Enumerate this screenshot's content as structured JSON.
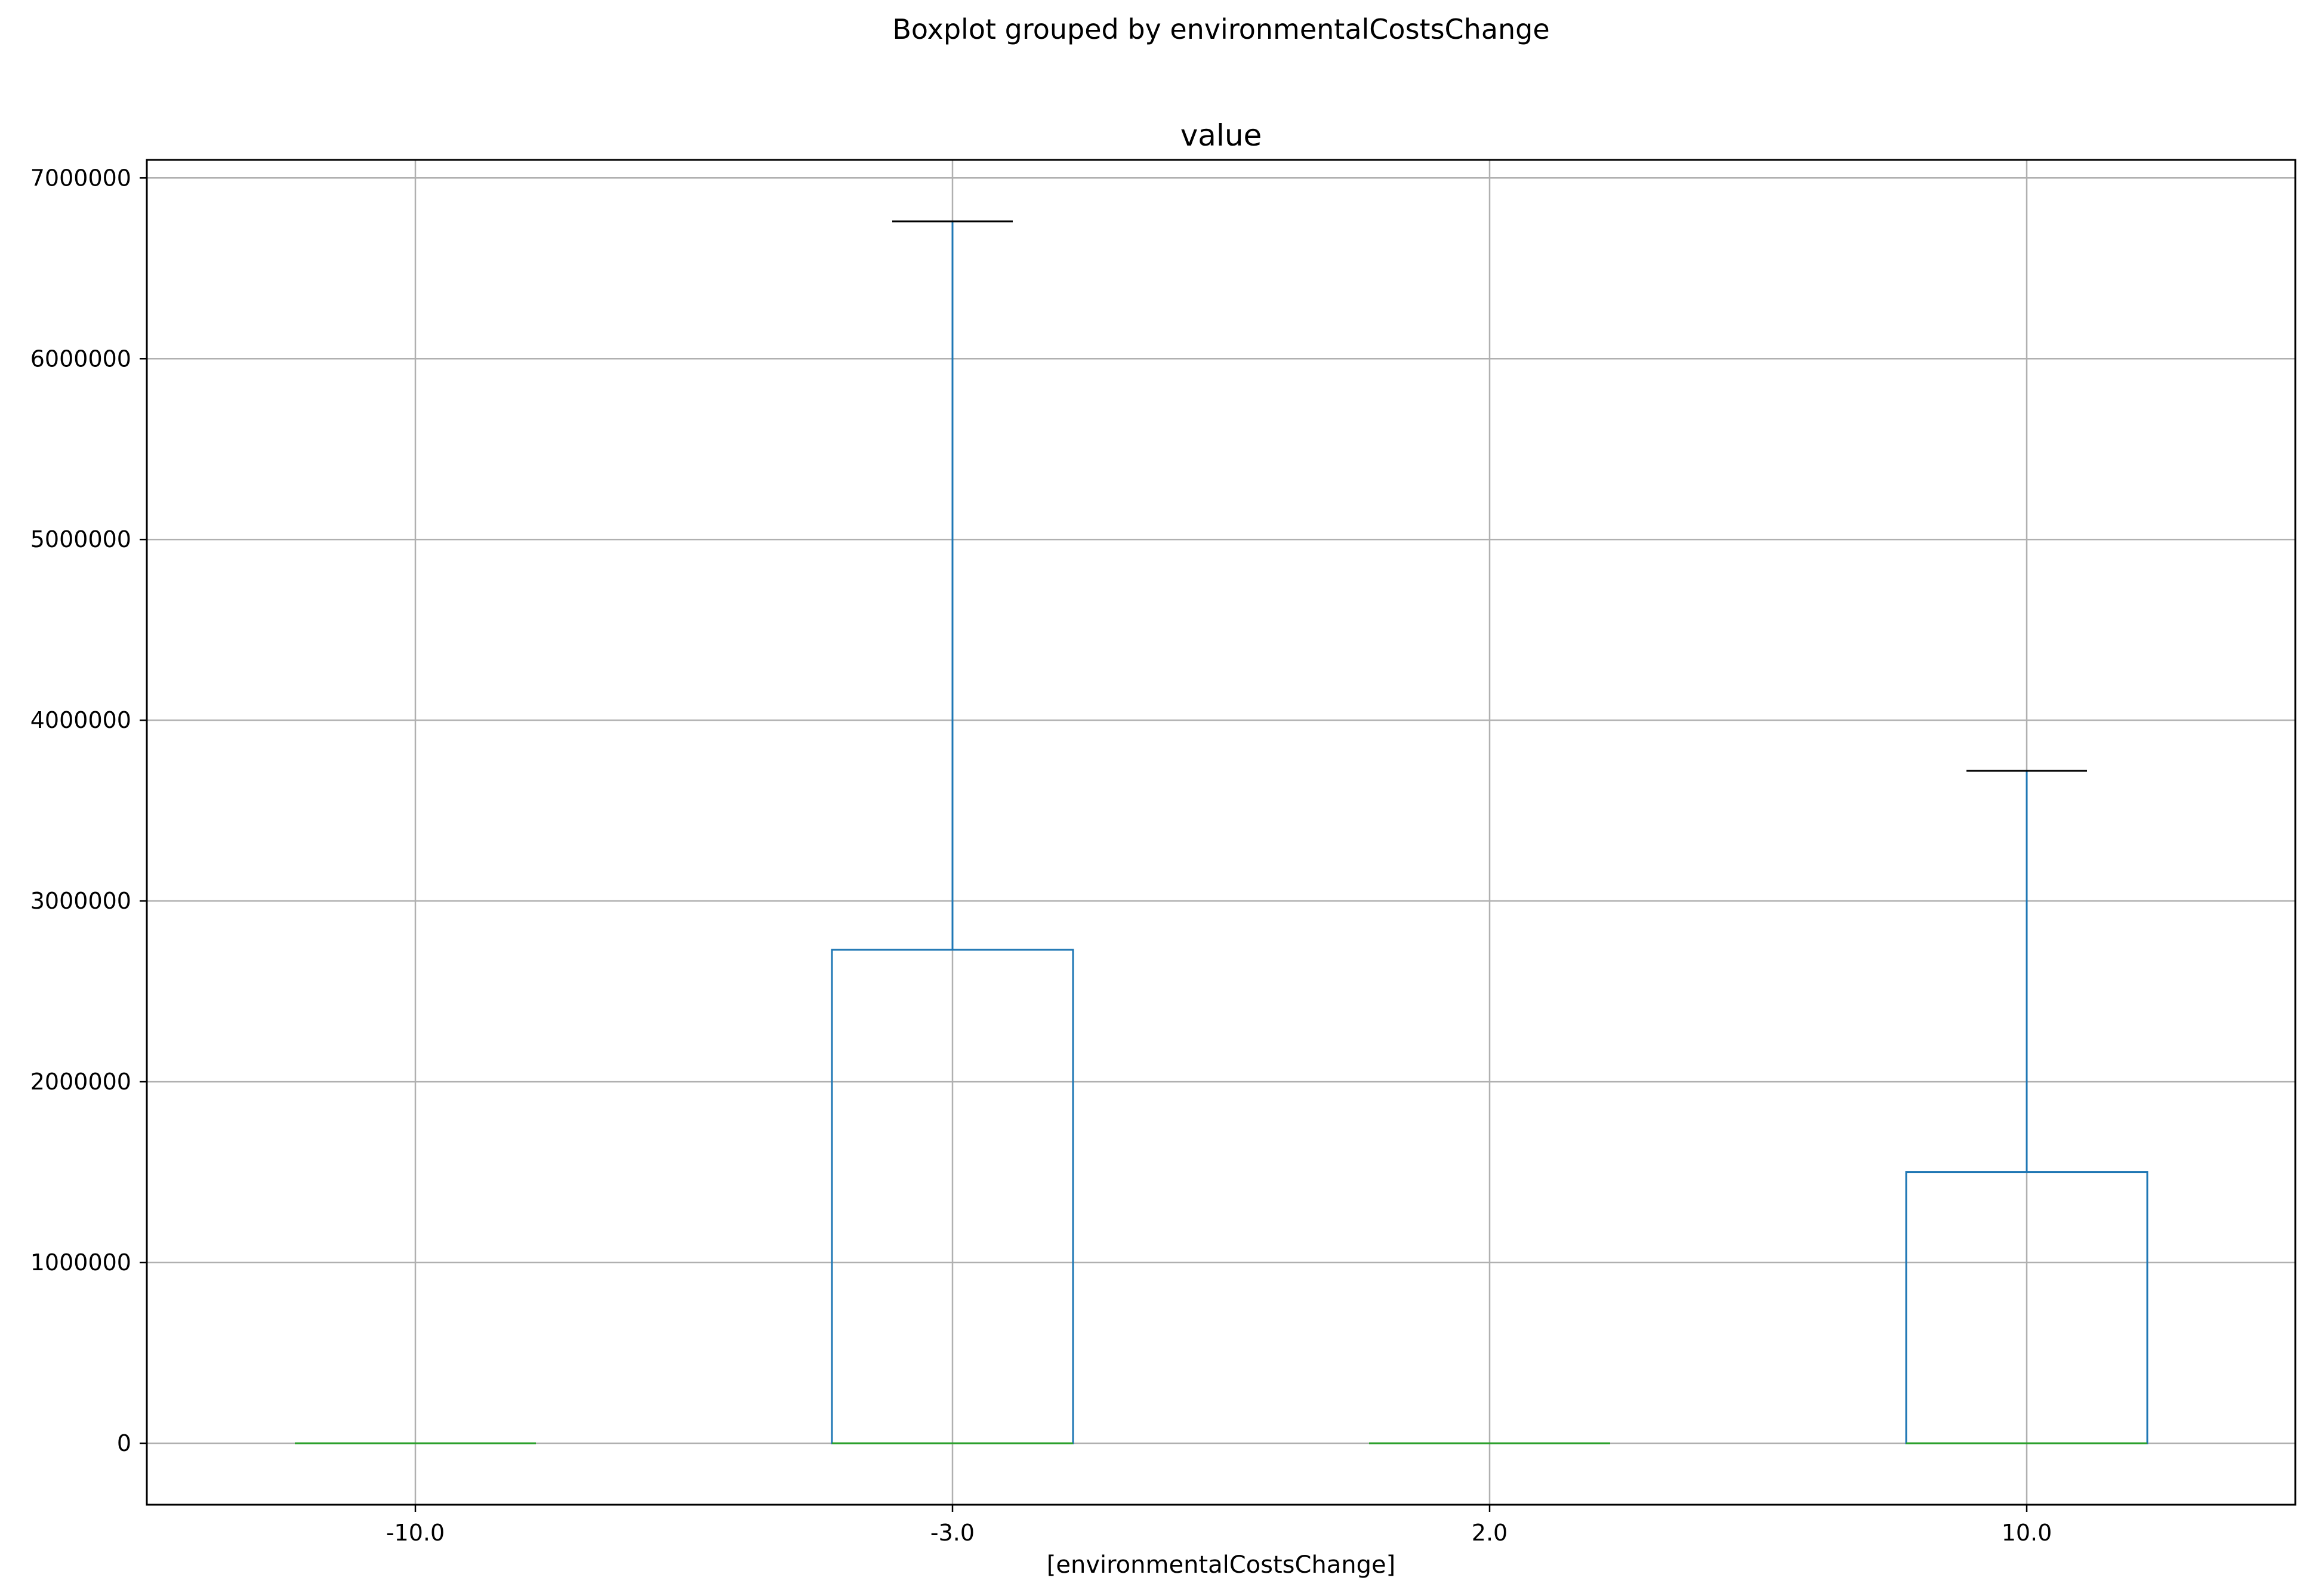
{
  "chart_data": {
    "type": "boxplot",
    "suptitle": "Boxplot grouped by environmentalCostsChange",
    "title": "value",
    "xlabel": "[environmentalCostsChange]",
    "ylabel": "",
    "categories": [
      "-10.0",
      "-3.0",
      "2.0",
      "10.0"
    ],
    "ylim": [
      -340000,
      7100000
    ],
    "yticks": [
      0,
      1000000,
      2000000,
      3000000,
      4000000,
      5000000,
      6000000,
      7000000
    ],
    "ytick_labels": [
      "0",
      "1000000",
      "2000000",
      "3000000",
      "4000000",
      "5000000",
      "6000000",
      "7000000"
    ],
    "grid": true,
    "boxes": [
      {
        "category": "-10.0",
        "whisker_low": 0,
        "q1": 0,
        "median": 0,
        "q3": 0,
        "whisker_high": 0
      },
      {
        "category": "-3.0",
        "whisker_low": 0,
        "q1": 0,
        "median": 0,
        "q3": 2730000,
        "whisker_high": 6760000
      },
      {
        "category": "2.0",
        "whisker_low": 0,
        "q1": 0,
        "median": 0,
        "q3": 0,
        "whisker_high": 0
      },
      {
        "category": "10.0",
        "whisker_low": 0,
        "q1": 0,
        "median": 0,
        "q3": 1500000,
        "whisker_high": 3720000
      }
    ],
    "colors": {
      "box": "#1f77b4",
      "median": "#2ca02c",
      "cap": "#000000",
      "grid": "#b0b0b0",
      "frame": "#000000"
    }
  }
}
